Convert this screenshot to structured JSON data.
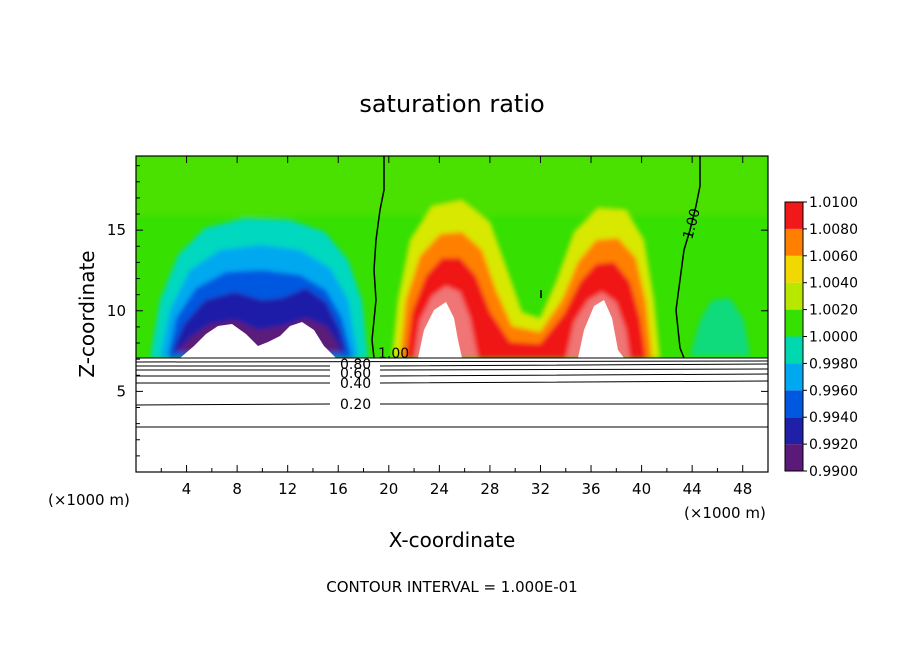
{
  "chart_data": {
    "type": "heatmap",
    "title": "saturation ratio",
    "xlabel": "X-coordinate",
    "ylabel": "Z-coordinate",
    "x_unit_left": "(×1000 m)",
    "x_unit_right": "(×1000 m)",
    "footer": "CONTOUR INTERVAL = 1.000E-01",
    "xlim": [
      0,
      50
    ],
    "ylim": [
      0,
      19.6
    ],
    "x_ticks": [
      4,
      8,
      12,
      16,
      20,
      24,
      28,
      32,
      36,
      40,
      44,
      48
    ],
    "y_ticks": [
      5,
      10,
      15
    ],
    "colorbar": {
      "levels": [
        0.99,
        0.992,
        0.994,
        0.996,
        0.998,
        1.0,
        1.002,
        1.004,
        1.006,
        1.008,
        1.01
      ],
      "tick_labels": [
        "0.9900",
        "0.9920",
        "0.9940",
        "0.9960",
        "0.9980",
        "1.0000",
        "1.0020",
        "1.0040",
        "1.0060",
        "1.0080",
        "1.0100"
      ],
      "colors": [
        "#5b1a7a",
        "#1f1fa8",
        "#0058e0",
        "#00a8f0",
        "#00d8b0",
        "#36e000",
        "#b8e800",
        "#f0d800",
        "#ff8000",
        "#f01818",
        "#f08080"
      ]
    },
    "contour_labels": [
      "1.00",
      "1.00",
      "0.80",
      "0.60",
      "0.40",
      "0.20"
    ],
    "cloud_base_z": 7.2
  }
}
